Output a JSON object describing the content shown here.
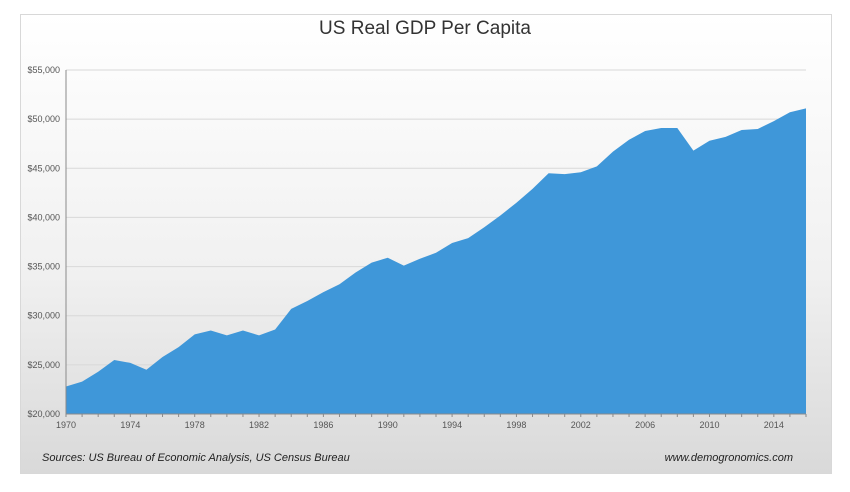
{
  "chart_data": {
    "type": "area",
    "title": "US Real GDP Per Capita",
    "xlabel": "",
    "ylabel": "",
    "x": [
      1970,
      1971,
      1972,
      1973,
      1974,
      1975,
      1976,
      1977,
      1978,
      1979,
      1980,
      1981,
      1982,
      1983,
      1984,
      1985,
      1986,
      1987,
      1988,
      1989,
      1990,
      1991,
      1992,
      1993,
      1994,
      1995,
      1996,
      1997,
      1998,
      1999,
      2000,
      2001,
      2002,
      2003,
      2004,
      2005,
      2006,
      2007,
      2008,
      2009,
      2010,
      2011,
      2012,
      2013,
      2014,
      2015,
      2016
    ],
    "values": [
      22800,
      23300,
      24300,
      25500,
      25200,
      24500,
      25800,
      26800,
      28100,
      28500,
      28000,
      28500,
      28000,
      28600,
      30700,
      31500,
      32400,
      33200,
      34400,
      35400,
      35900,
      35100,
      35800,
      36400,
      37400,
      37900,
      39000,
      40200,
      41500,
      42900,
      44500,
      44400,
      44600,
      45200,
      46700,
      47900,
      48800,
      49100,
      49100,
      46800,
      47800,
      48200,
      48900,
      49000,
      49800,
      50700,
      51100
    ],
    "xlim": [
      1970,
      2016
    ],
    "ylim": [
      20000,
      55000
    ],
    "x_ticks": [
      "1970",
      "1974",
      "1978",
      "1982",
      "1986",
      "1990",
      "1994",
      "1998",
      "2002",
      "2006",
      "2010",
      "2014"
    ],
    "y_ticks": [
      "$20,000",
      "$25,000",
      "$30,000",
      "$35,000",
      "$40,000",
      "$45,000",
      "$50,000",
      "$55,000"
    ],
    "grid": true,
    "legend": "none",
    "fill_color": "#3f97d9",
    "axis_color": "#8a8a8a",
    "grid_color": "#d8d8d8"
  },
  "footer": {
    "source": "Sources: US Bureau of Economic Analysis, US Census Bureau",
    "website": "www.demogronomics.com"
  }
}
